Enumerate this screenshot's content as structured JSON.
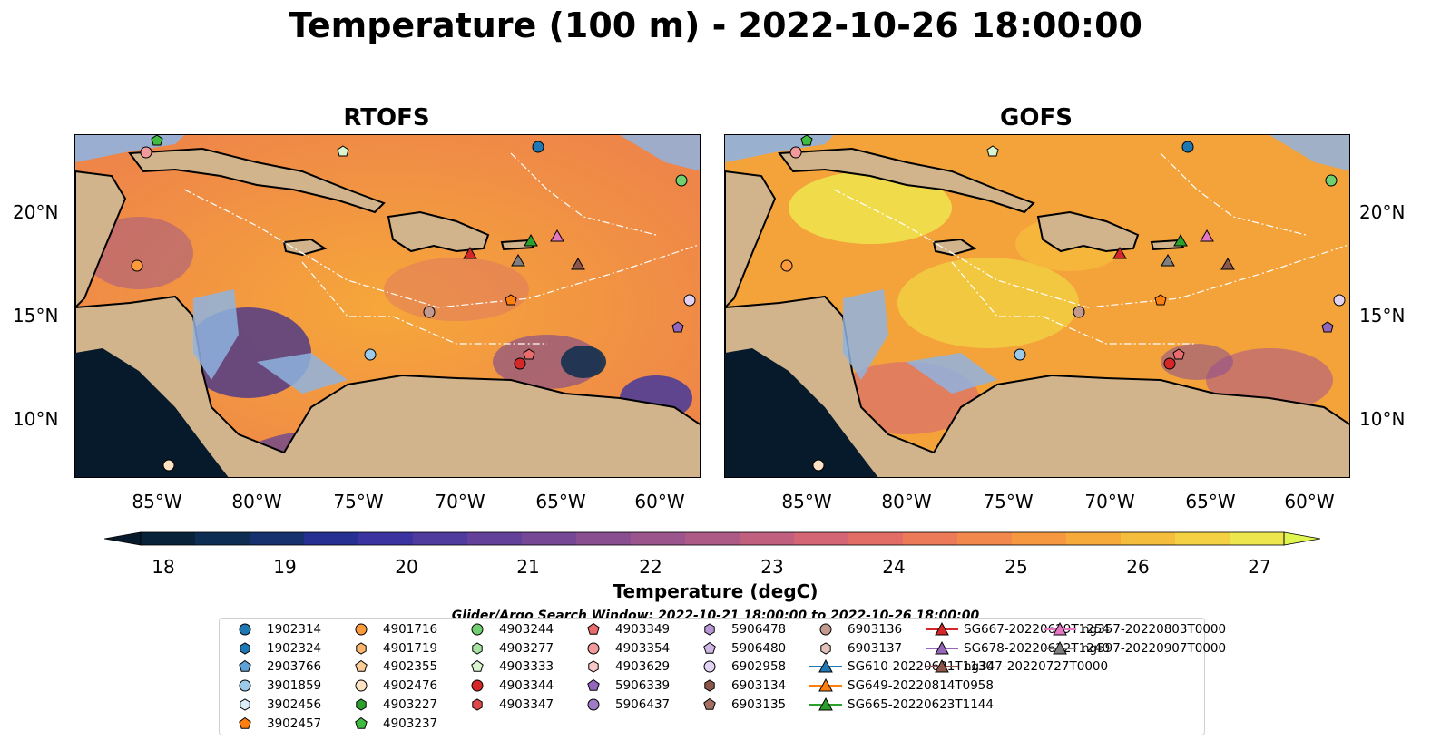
{
  "title": "Temperature (100 m) - 2022-10-26 18:00:00",
  "panels": [
    {
      "title": "RTOFS"
    },
    {
      "title": "GOFS"
    }
  ],
  "lat_labels": [
    "20°N",
    "15°N",
    "10°N"
  ],
  "lon_labels": [
    "85°W",
    "80°W",
    "75°W",
    "70°W",
    "65°W",
    "60°W"
  ],
  "colorbar": {
    "label": "Temperature (degC)",
    "ticks": [
      "18",
      "19",
      "20",
      "21",
      "22",
      "23",
      "24",
      "25",
      "26",
      "27"
    ],
    "colors": [
      "#08223a",
      "#0d2d52",
      "#17306e",
      "#263092",
      "#3b33a0",
      "#4f3a9e",
      "#634099",
      "#754795",
      "#884e90",
      "#9b548c",
      "#ae5a86",
      "#c15f7e",
      "#d46574",
      "#e26d67",
      "#ec7a59",
      "#f2884b",
      "#f5983f",
      "#f6aa3a",
      "#f5bd3c",
      "#f3d143",
      "#eee64d"
    ],
    "extend_low": "#061a2b",
    "extend_high": "#e0f552"
  },
  "search_window": "Glider/Argo Search Window: 2022-10-21 18:00:00 to 2022-10-26 18:00:00",
  "legend": {
    "items": [
      {
        "label": "1902314",
        "marker": "circle",
        "color": "#1f77b4"
      },
      {
        "label": "1902324",
        "marker": "hexagon",
        "color": "#1f77b4"
      },
      {
        "label": "2903766",
        "marker": "pentagon",
        "color": "#5fa2d6"
      },
      {
        "label": "3901859",
        "marker": "circle",
        "color": "#9ecae9"
      },
      {
        "label": "3902456",
        "marker": "hexagon",
        "color": "#dceefb"
      },
      {
        "label": "3902457",
        "marker": "pentagon",
        "color": "#ff7f0e"
      },
      {
        "label": "4901716",
        "marker": "circle",
        "color": "#fd9a3c"
      },
      {
        "label": "4901719",
        "marker": "hexagon",
        "color": "#fdb46b"
      },
      {
        "label": "4902355",
        "marker": "pentagon",
        "color": "#fdcb98"
      },
      {
        "label": "4902476",
        "marker": "circle",
        "color": "#fee2c3"
      },
      {
        "label": "4903227",
        "marker": "hexagon",
        "color": "#2ca02c"
      },
      {
        "label": "4903237",
        "marker": "pentagon",
        "color": "#3fbb3f"
      },
      {
        "label": "4903244",
        "marker": "circle",
        "color": "#70cf6e"
      },
      {
        "label": "4903277",
        "marker": "hexagon",
        "color": "#a6e3a0"
      },
      {
        "label": "4903333",
        "marker": "pentagon",
        "color": "#d8f5cf"
      },
      {
        "label": "4903344",
        "marker": "circle",
        "color": "#d62728"
      },
      {
        "label": "4903347",
        "marker": "hexagon",
        "color": "#e0484a"
      },
      {
        "label": "4903349",
        "marker": "pentagon",
        "color": "#ea6b6d"
      },
      {
        "label": "4903354",
        "marker": "circle",
        "color": "#f29a9b"
      },
      {
        "label": "4903629",
        "marker": "hexagon",
        "color": "#f8c7c6"
      },
      {
        "label": "5906339",
        "marker": "pentagon",
        "color": "#9467bd"
      },
      {
        "label": "5906437",
        "marker": "circle",
        "color": "#9f7ac6"
      },
      {
        "label": "5906478",
        "marker": "hexagon",
        "color": "#b797d6"
      },
      {
        "label": "5906480",
        "marker": "pentagon",
        "color": "#ceb6e6"
      },
      {
        "label": "6902958",
        "marker": "circle",
        "color": "#e3d3f2"
      },
      {
        "label": "6903134",
        "marker": "hexagon",
        "color": "#8c564b"
      },
      {
        "label": "6903135",
        "marker": "pentagon",
        "color": "#a56e62"
      },
      {
        "label": "6903136",
        "marker": "circle",
        "color": "#c39a90"
      },
      {
        "label": "6903137",
        "marker": "hexagon",
        "color": "#e2c3bb"
      },
      {
        "label": "SG610-20220621T1130",
        "marker": "triangle-line",
        "color": "#1f77b4"
      },
      {
        "label": "SG649-20220814T0958",
        "marker": "triangle-line",
        "color": "#ff7f0e"
      },
      {
        "label": "SG665-20220623T1144",
        "marker": "triangle-line",
        "color": "#2ca02c"
      },
      {
        "label": "SG667-20220629T1254",
        "marker": "triangle-line",
        "color": "#d62728"
      },
      {
        "label": "SG678-20220622T1240",
        "marker": "triangle-line",
        "color": "#9467bd"
      },
      {
        "label": "ng347-20220727T0000",
        "marker": "triangle-line",
        "color": "#8c564b"
      },
      {
        "label": "ng357-20220803T0000",
        "marker": "triangle-line",
        "color": "#e377c2"
      },
      {
        "label": "ng597-20220907T0000",
        "marker": "triangle-line",
        "color": "#7f7f7f"
      }
    ]
  }
}
